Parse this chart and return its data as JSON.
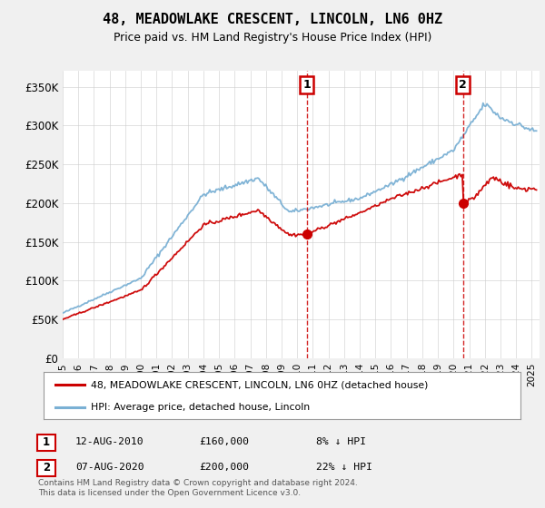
{
  "title": "48, MEADOWLAKE CRESCENT, LINCOLN, LN6 0HZ",
  "subtitle": "Price paid vs. HM Land Registry's House Price Index (HPI)",
  "ylabel_ticks": [
    "£0",
    "£50K",
    "£100K",
    "£150K",
    "£200K",
    "£250K",
    "£300K",
    "£350K"
  ],
  "ytick_values": [
    0,
    50000,
    100000,
    150000,
    200000,
    250000,
    300000,
    350000
  ],
  "ylim": [
    0,
    370000
  ],
  "sale1_date": "12-AUG-2010",
  "sale1_price": 160000,
  "sale1_pct": "8% ↓ HPI",
  "sale1_x": 2010.6,
  "sale2_date": "07-AUG-2020",
  "sale2_price": 200000,
  "sale2_pct": "22% ↓ HPI",
  "sale2_x": 2020.6,
  "legend_label1": "48, MEADOWLAKE CRESCENT, LINCOLN, LN6 0HZ (detached house)",
  "legend_label2": "HPI: Average price, detached house, Lincoln",
  "footer": "Contains HM Land Registry data © Crown copyright and database right 2024.\nThis data is licensed under the Open Government Licence v3.0.",
  "line_color_price": "#cc0000",
  "line_color_hpi": "#7ab0d4",
  "vline_color": "#cc0000",
  "background_color": "#f0f0f0",
  "plot_bg": "#ffffff"
}
